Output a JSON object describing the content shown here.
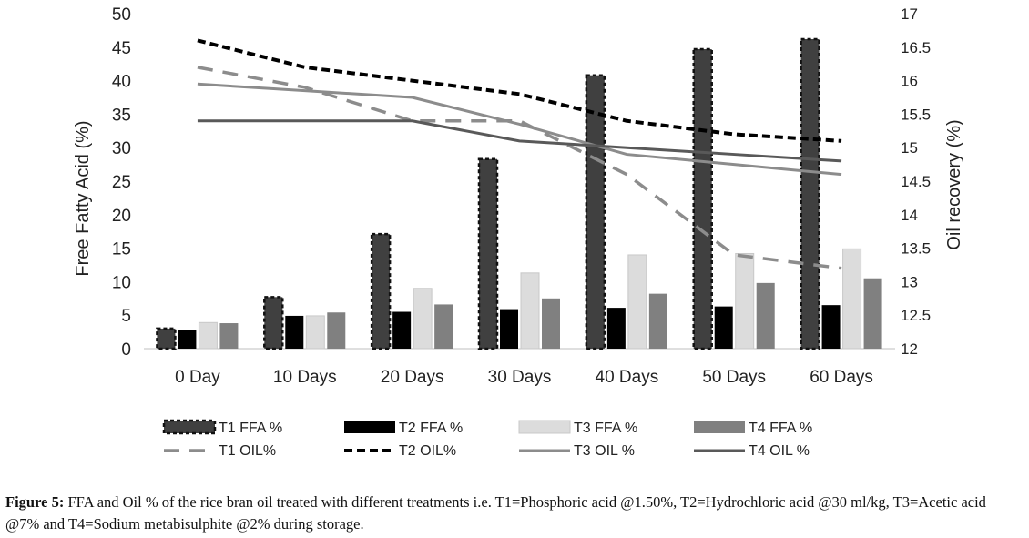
{
  "chart_data": {
    "type": "bar",
    "categories": [
      "0 Day",
      "10 Days",
      "20 Days",
      "30 Days",
      "40 Days",
      "50 Days",
      "60 Days"
    ],
    "ylabel": "Free Fatty Acid (%)",
    "y2label": "Oil recovery (%)",
    "ylim": [
      0,
      50
    ],
    "y2lim": [
      12,
      17
    ],
    "yticks": [
      "0",
      "5",
      "10",
      "15",
      "20",
      "25",
      "30",
      "35",
      "40",
      "45",
      "50"
    ],
    "y2ticks": [
      "12",
      "12.5",
      "13",
      "13.5",
      "14",
      "14.5",
      "15",
      "15.5",
      "16",
      "16.5",
      "17"
    ],
    "bar_series": [
      {
        "name": "T1 FFA %",
        "values": [
          3.0,
          7.7,
          17.1,
          28.3,
          40.8,
          44.7,
          46.2
        ],
        "color": "#404040",
        "dashed_border": true
      },
      {
        "name": "T2 FFA %",
        "values": [
          2.8,
          4.9,
          5.5,
          5.9,
          6.1,
          6.3,
          6.5
        ],
        "color": "#000000",
        "dashed_border": false
      },
      {
        "name": "T3 FFA %",
        "values": [
          3.9,
          4.9,
          9.0,
          11.3,
          14.0,
          14.2,
          14.9
        ],
        "color": "#dcdcdc",
        "dashed_border": false
      },
      {
        "name": "T4 FFA %",
        "values": [
          3.8,
          5.4,
          6.6,
          7.5,
          8.2,
          9.8,
          10.5
        ],
        "color": "#808080",
        "dashed_border": false
      }
    ],
    "line_series": [
      {
        "name": "T1 OIL%",
        "values": [
          16.2,
          15.9,
          15.4,
          15.4,
          14.6,
          13.4,
          13.2
        ],
        "color": "#8c8c8c",
        "style": "long-dash"
      },
      {
        "name": "T2 OIL%",
        "values": [
          16.6,
          16.2,
          16.0,
          15.8,
          15.4,
          15.2,
          15.1
        ],
        "color": "#000000",
        "style": "short-dash"
      },
      {
        "name": "T3 OIL %",
        "values": [
          15.95,
          15.85,
          15.75,
          15.35,
          14.9,
          14.75,
          14.6
        ],
        "color": "#8c8c8c",
        "style": "solid"
      },
      {
        "name": "T4 OIL %",
        "values": [
          15.4,
          15.4,
          15.4,
          15.1,
          15.0,
          14.9,
          14.8
        ],
        "color": "#595959",
        "style": "solid"
      }
    ],
    "legend_position": "bottom"
  },
  "caption": {
    "label": "Figure 5:",
    "text": "FFA and Oil % of the rice bran oil treated with different treatments i.e. T1=Phosphoric acid @1.50%, T2=Hydrochloric acid @30 ml/kg, T3=Acetic acid @7% and T4=Sodium metabisulphite @2% during storage."
  }
}
